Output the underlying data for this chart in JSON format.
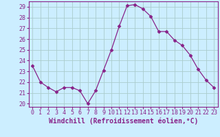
{
  "x": [
    0,
    1,
    2,
    3,
    4,
    5,
    6,
    7,
    8,
    9,
    10,
    11,
    12,
    13,
    14,
    15,
    16,
    17,
    18,
    19,
    20,
    21,
    22,
    23
  ],
  "y": [
    23.5,
    22.0,
    21.5,
    21.1,
    21.5,
    21.5,
    21.2,
    20.0,
    21.2,
    23.1,
    25.0,
    27.2,
    29.1,
    29.2,
    28.8,
    28.1,
    26.7,
    26.7,
    25.9,
    25.4,
    24.5,
    23.2,
    22.2,
    21.5
  ],
  "line_color": "#882288",
  "marker": "D",
  "marker_size": 2.5,
  "background_color": "#cceeff",
  "grid_color": "#aacccc",
  "xlabel": "Windchill (Refroidissement éolien,°C)",
  "xlabel_fontsize": 7,
  "xlim": [
    -0.5,
    23.5
  ],
  "ylim": [
    19.7,
    29.5
  ],
  "yticks": [
    20,
    21,
    22,
    23,
    24,
    25,
    26,
    27,
    28,
    29
  ],
  "xticks": [
    0,
    1,
    2,
    3,
    4,
    5,
    6,
    7,
    8,
    9,
    10,
    11,
    12,
    13,
    14,
    15,
    16,
    17,
    18,
    19,
    20,
    21,
    22,
    23
  ],
  "tick_fontsize": 6,
  "spine_color": "#882288",
  "fig_width": 3.2,
  "fig_height": 2.0,
  "dpi": 100
}
